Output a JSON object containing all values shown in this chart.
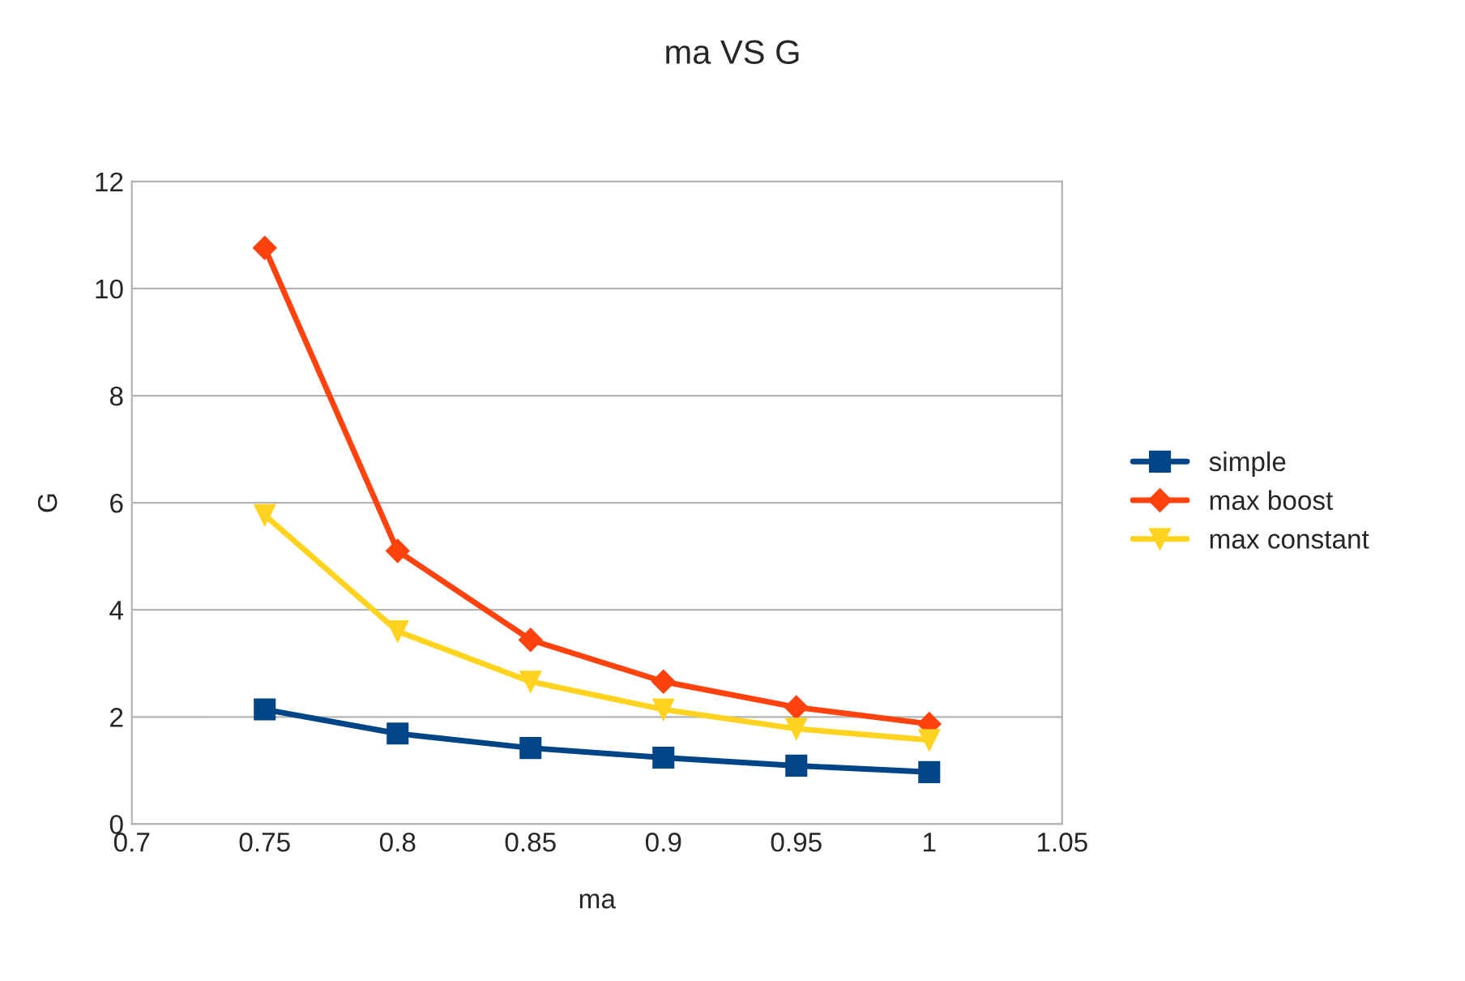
{
  "chart_data": {
    "type": "line",
    "title": "ma VS G",
    "xlabel": "ma",
    "ylabel": "G",
    "x": [
      0.75,
      0.8,
      0.85,
      0.9,
      0.95,
      1
    ],
    "series": [
      {
        "name": "simple",
        "color": "#004586",
        "marker": "square",
        "values": [
          2.14,
          1.69,
          1.42,
          1.24,
          1.09,
          0.97
        ]
      },
      {
        "name": "max boost",
        "color": "#ff420e",
        "marker": "diamond",
        "values": [
          10.76,
          5.1,
          3.44,
          2.66,
          2.18,
          1.87
        ]
      },
      {
        "name": "max constant",
        "color": "#ffd320",
        "marker": "triangle",
        "values": [
          5.77,
          3.6,
          2.66,
          2.14,
          1.78,
          1.57
        ]
      }
    ],
    "xlim": [
      0.7,
      1.05
    ],
    "xticks": [
      0.7,
      0.75,
      0.8,
      0.85,
      0.9,
      0.95,
      1,
      1.05
    ],
    "ylim": [
      0,
      12
    ],
    "yticks": [
      0,
      2,
      4,
      6,
      8,
      10,
      12
    ],
    "grid": "y",
    "legend": "right",
    "line_style": "solid"
  }
}
